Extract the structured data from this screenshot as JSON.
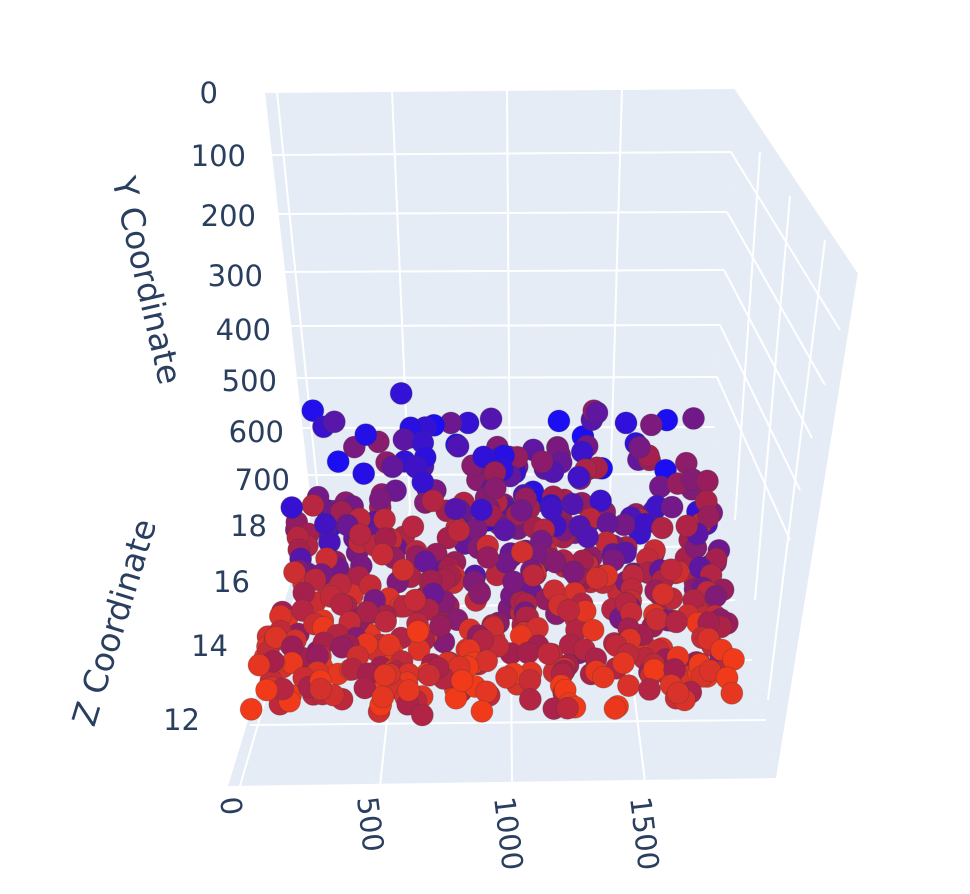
{
  "chart_data": {
    "type": "scatter",
    "title": "",
    "xlabel": "",
    "ylabel": "Y Coordinate",
    "zlabel": "Z Coordinate",
    "x_ticks": [
      "0",
      "500",
      "1000",
      "1500"
    ],
    "y_ticks": [
      "0",
      "100",
      "200",
      "300",
      "400",
      "500",
      "600",
      "700"
    ],
    "z_ticks": [
      "12",
      "14",
      "16",
      "18"
    ],
    "xlim": [
      0,
      1900
    ],
    "ylim": [
      0,
      700
    ],
    "zlim": [
      11,
      19
    ],
    "grid": true,
    "colorscale": [
      "#1c0ef2",
      "#a31f4f",
      "#f03a1a"
    ],
    "points": {
      "count": 620,
      "x_range": [
        0,
        1900
      ],
      "y_range": [
        0,
        700
      ],
      "z_range": [
        11,
        19
      ]
    }
  },
  "colors": {
    "background": "#ffffff",
    "pane": "#e5ecf6",
    "grid": "#ffffff",
    "text": "#2a3f5f",
    "marker_outline": "#555555"
  }
}
